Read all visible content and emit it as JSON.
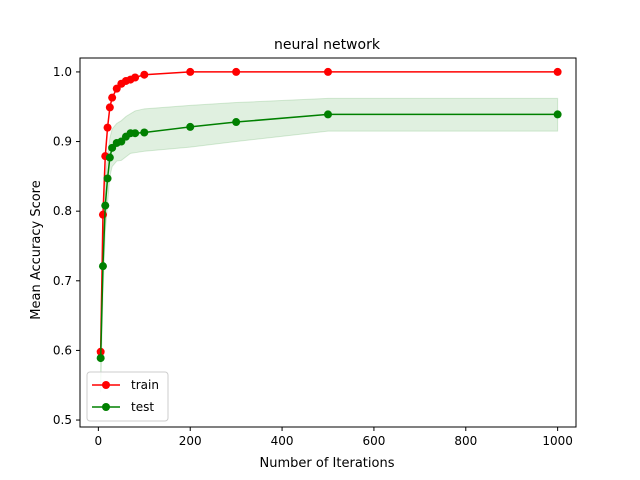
{
  "chart_data": {
    "type": "line",
    "title": "neural network",
    "xlabel": "Number of Iterations",
    "ylabel": "Mean Accuracy Score",
    "xlim": [
      -40,
      1040
    ],
    "ylim": [
      0.49,
      1.02
    ],
    "xticks": [
      0,
      200,
      400,
      600,
      800,
      1000
    ],
    "yticks": [
      0.5,
      0.6,
      0.7,
      0.8,
      0.9,
      1.0
    ],
    "ytick_labels": [
      "0.5",
      "0.6",
      "0.7",
      "0.8",
      "0.9",
      "1.0"
    ],
    "legend_position": "lower-left",
    "grid": false,
    "series": [
      {
        "name": "train",
        "color": "#ff0000",
        "x": [
          5,
          10,
          15,
          20,
          25,
          30,
          40,
          50,
          60,
          70,
          80,
          100,
          200,
          300,
          500,
          1000
        ],
        "y": [
          0.598,
          0.795,
          0.879,
          0.92,
          0.949,
          0.963,
          0.976,
          0.983,
          0.987,
          0.989,
          0.992,
          0.996,
          1.0,
          1.0,
          1.0,
          1.0
        ]
      },
      {
        "name": "test",
        "color": "#008000",
        "x": [
          5,
          10,
          15,
          20,
          25,
          30,
          40,
          50,
          60,
          70,
          80,
          100,
          200,
          300,
          500,
          1000
        ],
        "y": [
          0.589,
          0.721,
          0.808,
          0.847,
          0.877,
          0.891,
          0.898,
          0.9,
          0.907,
          0.912,
          0.912,
          0.913,
          0.921,
          0.928,
          0.939,
          0.939
        ],
        "band_upper": [
          0.64,
          0.76,
          0.845,
          0.88,
          0.905,
          0.918,
          0.926,
          0.93,
          0.936,
          0.94,
          0.944,
          0.947,
          0.952,
          0.956,
          0.962,
          0.962
        ],
        "band_lower": [
          0.54,
          0.68,
          0.77,
          0.81,
          0.85,
          0.864,
          0.872,
          0.873,
          0.878,
          0.883,
          0.884,
          0.886,
          0.892,
          0.9,
          0.915,
          0.915
        ]
      }
    ]
  }
}
